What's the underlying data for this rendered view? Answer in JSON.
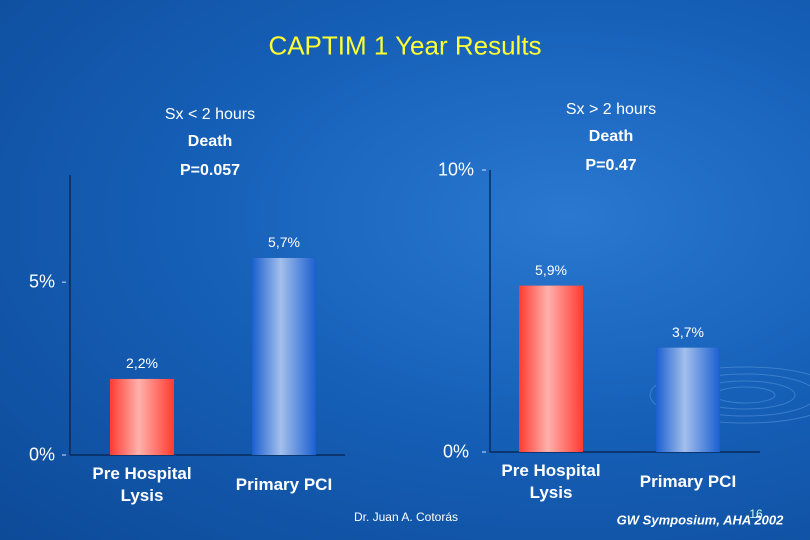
{
  "title": "CAPTIM 1 Year Results",
  "footer": {
    "author": "Dr. Juan A. Cotorás",
    "event": "GW Symposium, AHA 2002",
    "slide_number": "16"
  },
  "chart_data": [
    {
      "type": "bar",
      "group": "Sx < 2 hours",
      "title": "Death",
      "annotation": "P=0.057",
      "categories": [
        "Pre Hospital Lysis",
        "Primary PCI"
      ],
      "values": [
        2.2,
        5.7
      ],
      "value_labels": [
        "2,2%",
        "5,7%"
      ],
      "colors": [
        "#ff3b30",
        "#1a5fd0"
      ],
      "ylim": [
        0,
        8.1
      ],
      "yticks": [
        {
          "value": 0,
          "label": "0%"
        },
        {
          "value": 5,
          "label": "5%"
        }
      ]
    },
    {
      "type": "bar",
      "group": "Sx > 2 hours",
      "title": "Death",
      "annotation": "P=0.47",
      "categories": [
        "Pre Hospital Lysis",
        "Primary PCI"
      ],
      "values": [
        5.9,
        3.7
      ],
      "value_labels": [
        "5,9%",
        "3,7%"
      ],
      "colors": [
        "#ff3b30",
        "#1a5fd0"
      ],
      "ylim": [
        0,
        10
      ],
      "yticks": [
        {
          "value": 0,
          "label": "0%"
        },
        {
          "value": 10,
          "label": "10%"
        }
      ]
    }
  ]
}
